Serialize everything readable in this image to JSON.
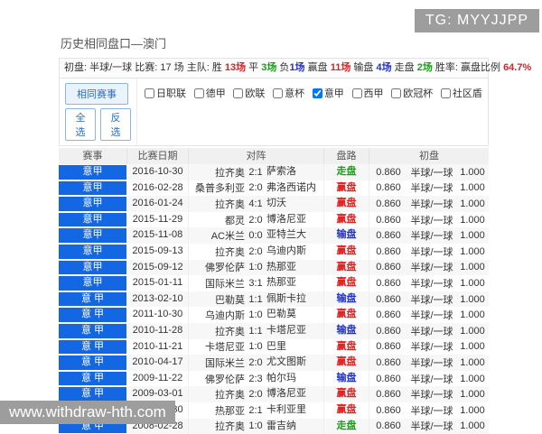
{
  "watermarks": {
    "top_right": "TG: MYYJJPP",
    "bottom_left": "www.withdraw-hth.com"
  },
  "page": {
    "title": "历史相同盘口—澳门"
  },
  "stats": {
    "opening": "初盘: 半球/一球",
    "matches": " 比赛: 17 场 ",
    "home_prefix": " 主队: 胜 ",
    "win_count": "13场",
    "draw_label": " 平 ",
    "draw_count": "3场",
    "lose_label": " 负",
    "lose_count": "1场",
    "cover_label": " 赢盘 ",
    "cover_count": "11场",
    "loss_label": " 输盘 ",
    "loss_count": "4场",
    "push_label": " 走盘 ",
    "push_count": "2场",
    "rate_label": " 胜率: 赢盘比例 ",
    "rate_value": "64.7%"
  },
  "filters": {
    "same_event": "相同赛事",
    "select_all": "全选",
    "invert": "反选",
    "leagues": [
      {
        "label": "日职联",
        "checked": false
      },
      {
        "label": "德甲",
        "checked": false
      },
      {
        "label": "欧联",
        "checked": false
      },
      {
        "label": "意杯",
        "checked": false
      },
      {
        "label": "意甲",
        "checked": true
      },
      {
        "label": "西甲",
        "checked": false
      },
      {
        "label": "欧冠杯",
        "checked": false
      },
      {
        "label": "社区盾",
        "checked": false
      }
    ]
  },
  "table": {
    "headers": {
      "league": "赛事",
      "date": "比赛日期",
      "matchup": "对阵",
      "result": "盘路",
      "opening": "初盘"
    },
    "rows": [
      {
        "league": "意甲",
        "date": "2016-10-30",
        "home": "拉齐奥",
        "score": "2:1",
        "away": "萨索洛",
        "result": "走盘",
        "result_type": "push",
        "odds_home": "0.860",
        "handicap": "半球/一球",
        "odds_away": "1.000"
      },
      {
        "league": "意甲",
        "date": "2016-02-28",
        "home": "桑普多利亚",
        "score": "2:0",
        "away": "弗洛西诺内",
        "result": "赢盘",
        "result_type": "win",
        "odds_home": "0.860",
        "handicap": "半球/一球",
        "odds_away": "1.000"
      },
      {
        "league": "意甲",
        "date": "2016-01-24",
        "home": "拉齐奥",
        "score": "4:1",
        "away": "切沃",
        "result": "赢盘",
        "result_type": "win",
        "odds_home": "0.860",
        "handicap": "半球/一球",
        "odds_away": "1.000"
      },
      {
        "league": "意甲",
        "date": "2015-11-29",
        "home": "都灵",
        "score": "2:0",
        "away": "博洛尼亚",
        "result": "赢盘",
        "result_type": "win",
        "odds_home": "0.860",
        "handicap": "半球/一球",
        "odds_away": "1.000"
      },
      {
        "league": "意甲",
        "date": "2015-11-08",
        "home": "AC米兰",
        "score": "0:0",
        "away": "亚特兰大",
        "result": "输盘",
        "result_type": "lose",
        "odds_home": "0.860",
        "handicap": "半球/一球",
        "odds_away": "1.000"
      },
      {
        "league": "意甲",
        "date": "2015-09-13",
        "home": "拉齐奥",
        "score": "2:0",
        "away": "乌迪内斯",
        "result": "赢盘",
        "result_type": "win",
        "odds_home": "0.860",
        "handicap": "半球/一球",
        "odds_away": "1.000"
      },
      {
        "league": "意甲",
        "date": "2015-09-12",
        "home": "佛罗伦萨",
        "score": "1:0",
        "away": "热那亚",
        "result": "赢盘",
        "result_type": "win",
        "odds_home": "0.860",
        "handicap": "半球/一球",
        "odds_away": "1.000"
      },
      {
        "league": "意甲",
        "date": "2015-01-11",
        "home": "国际米兰",
        "score": "3:1",
        "away": "热那亚",
        "result": "赢盘",
        "result_type": "win",
        "odds_home": "0.860",
        "handicap": "半球/一球",
        "odds_away": "1.000"
      },
      {
        "league": "意 甲",
        "date": "2013-02-10",
        "home": "巴勒莫",
        "score": "1:1",
        "away": "佩斯卡拉",
        "result": "输盘",
        "result_type": "lose",
        "odds_home": "0.860",
        "handicap": "半球/一球",
        "odds_away": "1.000"
      },
      {
        "league": "意 甲",
        "date": "2011-10-30",
        "home": "乌迪内斯",
        "score": "1:0",
        "away": "巴勒莫",
        "result": "赢盘",
        "result_type": "win",
        "odds_home": "0.860",
        "handicap": "半球/一球",
        "odds_away": "1.000"
      },
      {
        "league": "意 甲",
        "date": "2010-11-28",
        "home": "拉齐奥",
        "score": "1:1",
        "away": "卡塔尼亚",
        "result": "输盘",
        "result_type": "lose",
        "odds_home": "0.860",
        "handicap": "半球/一球",
        "odds_away": "1.000"
      },
      {
        "league": "意 甲",
        "date": "2010-11-21",
        "home": "卡塔尼亚",
        "score": "1:0",
        "away": "巴里",
        "result": "赢盘",
        "result_type": "win",
        "odds_home": "0.860",
        "handicap": "半球/一球",
        "odds_away": "1.000"
      },
      {
        "league": "意 甲",
        "date": "2010-04-17",
        "home": "国际米兰",
        "score": "2:0",
        "away": "尤文图斯",
        "result": "赢盘",
        "result_type": "win",
        "odds_home": "0.860",
        "handicap": "半球/一球",
        "odds_away": "1.000"
      },
      {
        "league": "意 甲",
        "date": "2009-11-22",
        "home": "佛罗伦萨",
        "score": "2:3",
        "away": "帕尔玛",
        "result": "输盘",
        "result_type": "lose",
        "odds_home": "0.860",
        "handicap": "半球/一球",
        "odds_away": "1.000"
      },
      {
        "league": "意 甲",
        "date": "2009-03-01",
        "home": "拉齐奥",
        "score": "2:0",
        "away": "博洛尼亚",
        "result": "赢盘",
        "result_type": "win",
        "odds_home": "0.860",
        "handicap": "半球/一球",
        "odds_away": "1.000"
      },
      {
        "league": "意 甲",
        "date": "2008-10-30",
        "home": "热那亚",
        "score": "2:1",
        "away": "卡利亚里",
        "result": "赢盘",
        "result_type": "win",
        "odds_home": "0.860",
        "handicap": "半球/一球",
        "odds_away": "1.000"
      },
      {
        "league": "意 甲",
        "date": "2008-02-28",
        "home": "拉齐奥",
        "score": "1:0",
        "away": "雷吉纳",
        "result": "走盘",
        "result_type": "push",
        "odds_home": "0.860",
        "handicap": "半球/一球",
        "odds_away": "1.000"
      }
    ]
  },
  "colors": {
    "league_blue": "#1467e2",
    "win_red": "#e02222",
    "lose_blue": "#2233cc",
    "push_green": "#18a018",
    "watermark_gray": "#9d9d9d"
  }
}
